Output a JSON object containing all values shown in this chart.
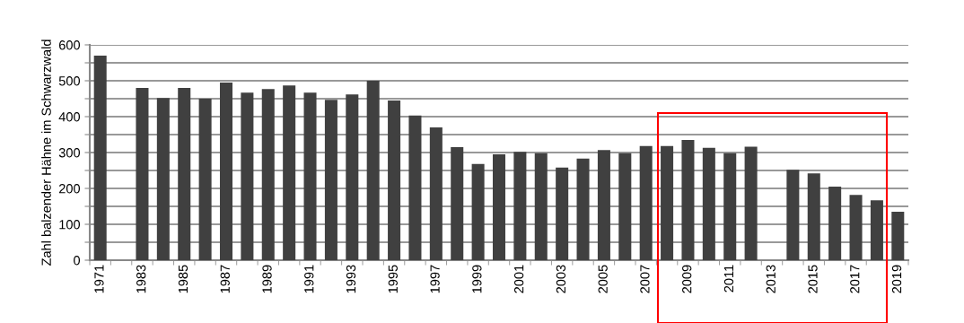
{
  "chart_data": {
    "type": "bar",
    "ylabel": "Zahl balzender Hähne im Schwarzwald",
    "categories": [
      "1971",
      null,
      "1983",
      null,
      "1985",
      null,
      "1987",
      null,
      "1989",
      null,
      "1991",
      null,
      "1993",
      null,
      "1995",
      null,
      "1997",
      null,
      "1999",
      null,
      "2001",
      null,
      "2003",
      null,
      "2005",
      null,
      "2007",
      null,
      "2009",
      null,
      "2011",
      null,
      "2013",
      null,
      "2015",
      null,
      "2017",
      null,
      "2019"
    ],
    "values": [
      570,
      null,
      480,
      452,
      480,
      450,
      495,
      467,
      477,
      487,
      467,
      447,
      462,
      500,
      445,
      403,
      370,
      315,
      268,
      295,
      302,
      298,
      258,
      283,
      307,
      298,
      318,
      318,
      335,
      313,
      298,
      316,
      null,
      252,
      242,
      205,
      182,
      167,
      135
    ],
    "color": "#404040",
    "ylim": [
      0,
      600
    ],
    "yticks": [
      0,
      {
        "value": 50,
        "label": null
      },
      100,
      {
        "value": 150,
        "label": null
      },
      200,
      {
        "value": 250,
        "label": null
      },
      300,
      {
        "value": 350,
        "label": null
      },
      400,
      {
        "value": 450,
        "label": null
      },
      500,
      {
        "value": 550,
        "label": null
      },
      600
    ],
    "grid": "y",
    "legend": false
  }
}
